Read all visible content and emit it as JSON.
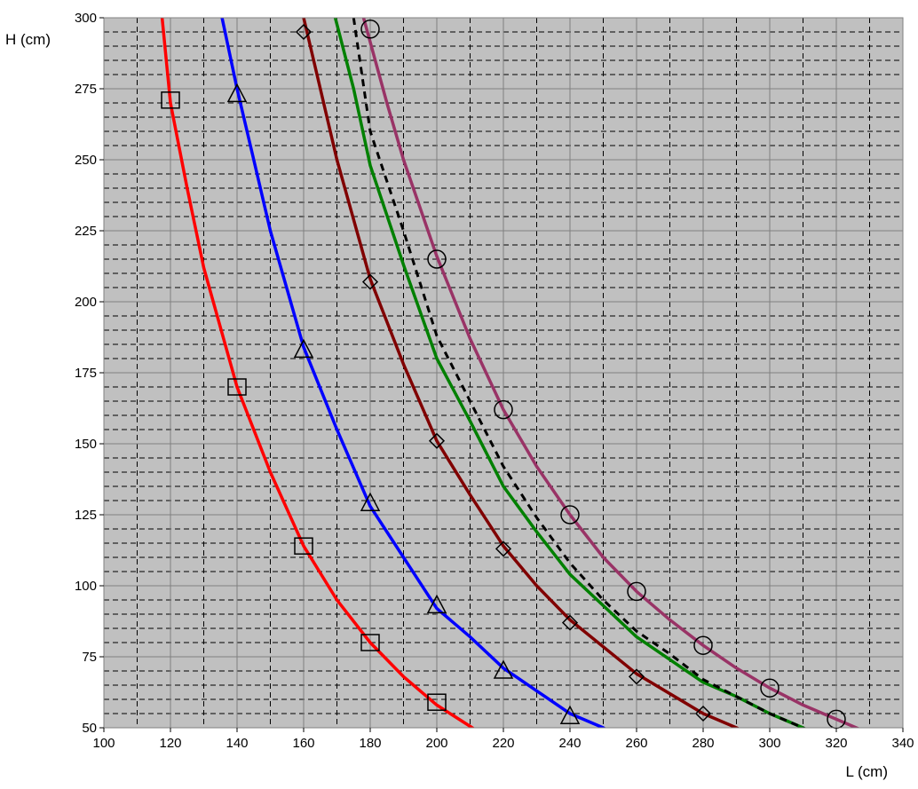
{
  "chart_data": {
    "type": "line",
    "xlabel": "L (cm)",
    "ylabel": "H (cm)",
    "xlim": [
      100,
      340
    ],
    "ylim": [
      50,
      300
    ],
    "xticks": [
      100,
      120,
      140,
      160,
      180,
      200,
      220,
      240,
      260,
      280,
      300,
      320,
      340
    ],
    "yticks": [
      50,
      75,
      100,
      125,
      150,
      175,
      200,
      225,
      250,
      275,
      300
    ],
    "grid": true,
    "background": "#c0c0c0",
    "series": [
      {
        "color": "#ff0000",
        "marker": "square",
        "line": [
          [
            117.5,
            300
          ],
          [
            120,
            270
          ],
          [
            125,
            240
          ],
          [
            130,
            212
          ],
          [
            140,
            170
          ],
          [
            150,
            140
          ],
          [
            160,
            114
          ],
          [
            170,
            95
          ],
          [
            180,
            80
          ],
          [
            190,
            68
          ],
          [
            200,
            58
          ],
          [
            210,
            50.5
          ],
          [
            217,
            45
          ]
        ],
        "markers": [
          [
            120,
            271
          ],
          [
            140,
            170
          ],
          [
            160,
            114
          ],
          [
            180,
            80
          ],
          [
            200,
            59
          ]
        ]
      },
      {
        "color": "#0000ff",
        "marker": "triangle",
        "line": [
          [
            135.5,
            300
          ],
          [
            140,
            275
          ],
          [
            145,
            250
          ],
          [
            150,
            225
          ],
          [
            160,
            184
          ],
          [
            170,
            155
          ],
          [
            180,
            128
          ],
          [
            190,
            110
          ],
          [
            200,
            92
          ],
          [
            210,
            82
          ],
          [
            220,
            71
          ],
          [
            230,
            63
          ],
          [
            240,
            55
          ],
          [
            250,
            50
          ],
          [
            254,
            47
          ]
        ],
        "markers": [
          [
            140,
            273
          ],
          [
            160,
            183
          ],
          [
            180,
            129
          ],
          [
            200,
            93
          ],
          [
            220,
            70
          ],
          [
            240,
            54
          ]
        ]
      },
      {
        "color": "#800000",
        "marker": "diamond",
        "line": [
          [
            160,
            300
          ],
          [
            165,
            275
          ],
          [
            170,
            250
          ],
          [
            180,
            208
          ],
          [
            190,
            178
          ],
          [
            200,
            151
          ],
          [
            210,
            132
          ],
          [
            220,
            114
          ],
          [
            230,
            100
          ],
          [
            240,
            88
          ],
          [
            260,
            69
          ],
          [
            280,
            55
          ],
          [
            290,
            50
          ],
          [
            297,
            46
          ]
        ],
        "markers": [
          [
            160,
            295
          ],
          [
            180,
            207
          ],
          [
            200,
            151
          ],
          [
            220,
            113
          ],
          [
            240,
            87
          ],
          [
            260,
            68
          ],
          [
            280,
            55
          ]
        ]
      },
      {
        "color": "#008000",
        "marker": "none",
        "line": [
          [
            169.5,
            300
          ],
          [
            175,
            275
          ],
          [
            180,
            248
          ],
          [
            190,
            213
          ],
          [
            200,
            180
          ],
          [
            210,
            158
          ],
          [
            220,
            135
          ],
          [
            230,
            119
          ],
          [
            240,
            104
          ],
          [
            250,
            93
          ],
          [
            260,
            82
          ],
          [
            270,
            74
          ],
          [
            280,
            66
          ],
          [
            290,
            61
          ],
          [
            300,
            55
          ],
          [
            310,
            50
          ],
          [
            317,
            46
          ]
        ],
        "markers": []
      },
      {
        "color": "#000000",
        "marker": "none",
        "dashed": true,
        "line": [
          [
            175,
            300
          ],
          [
            180,
            260
          ],
          [
            190,
            225
          ],
          [
            200,
            188
          ],
          [
            210,
            165
          ],
          [
            220,
            142
          ],
          [
            230,
            124
          ],
          [
            240,
            108
          ],
          [
            250,
            95
          ],
          [
            260,
            84
          ],
          [
            270,
            76
          ],
          [
            280,
            67
          ],
          [
            290,
            61
          ],
          [
            300,
            55
          ],
          [
            310,
            50
          ],
          [
            314,
            46
          ]
        ],
        "markers": []
      },
      {
        "color": "#993366",
        "marker": "circle",
        "line": [
          [
            178,
            300
          ],
          [
            185,
            270
          ],
          [
            190,
            250
          ],
          [
            200,
            216
          ],
          [
            210,
            187
          ],
          [
            220,
            162
          ],
          [
            230,
            142
          ],
          [
            240,
            125
          ],
          [
            250,
            110
          ],
          [
            260,
            98
          ],
          [
            270,
            88
          ],
          [
            280,
            79
          ],
          [
            290,
            71
          ],
          [
            300,
            64
          ],
          [
            310,
            58
          ],
          [
            320,
            53
          ],
          [
            330,
            48
          ],
          [
            335,
            46
          ]
        ],
        "markers": [
          [
            180,
            296
          ],
          [
            200,
            215
          ],
          [
            220,
            162
          ],
          [
            240,
            125
          ],
          [
            260,
            98
          ],
          [
            280,
            79
          ],
          [
            300,
            64
          ],
          [
            320,
            53
          ]
        ]
      }
    ]
  }
}
